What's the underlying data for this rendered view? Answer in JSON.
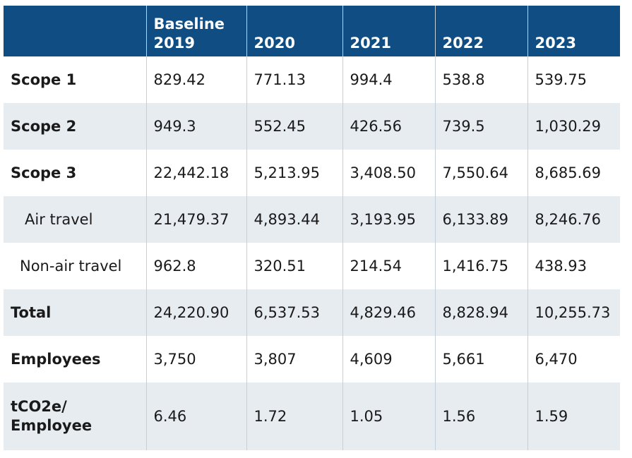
{
  "table": {
    "header": {
      "corner": "",
      "baseline_line1": "Baseline",
      "baseline_line2": "2019",
      "years": [
        "2020",
        "2021",
        "2022",
        "2023"
      ]
    },
    "rows": [
      {
        "label": "Scope 1",
        "values": [
          "829.42",
          "771.13",
          "994.4",
          "538.8",
          "539.75"
        ]
      },
      {
        "label": "Scope 2",
        "values": [
          "949.3",
          "552.45",
          "426.56",
          "739.5",
          "1,030.29"
        ]
      },
      {
        "label": "Scope 3",
        "values": [
          "22,442.18",
          "5,213.95",
          "3,408.50",
          "7,550.64",
          "8,685.69"
        ]
      },
      {
        "label": "Air travel",
        "values": [
          "21,479.37",
          "4,893.44",
          "3,193.95",
          "6,133.89",
          "8,246.76"
        ]
      },
      {
        "label": "Non-air travel",
        "values": [
          "962.8",
          "320.51",
          "214.54",
          "1,416.75",
          "438.93"
        ]
      },
      {
        "label": "Total",
        "values": [
          "24,220.90",
          "6,537.53",
          "4,829.46",
          "8,828.94",
          "10,255.73"
        ]
      },
      {
        "label": "Employees",
        "values": [
          "3,750",
          "3,807",
          "4,609",
          "5,661",
          "6,470"
        ]
      },
      {
        "label_line1": "tCO2e/",
        "label_line2": "Employee",
        "values": [
          "6.46",
          "1.72",
          "1.05",
          "1.56",
          "1.59"
        ]
      }
    ]
  },
  "colors": {
    "header_bg": "#0f4d82",
    "header_text": "#ffffff",
    "shaded_row": "#e7ecf1",
    "divider": "#c4cfd9"
  }
}
